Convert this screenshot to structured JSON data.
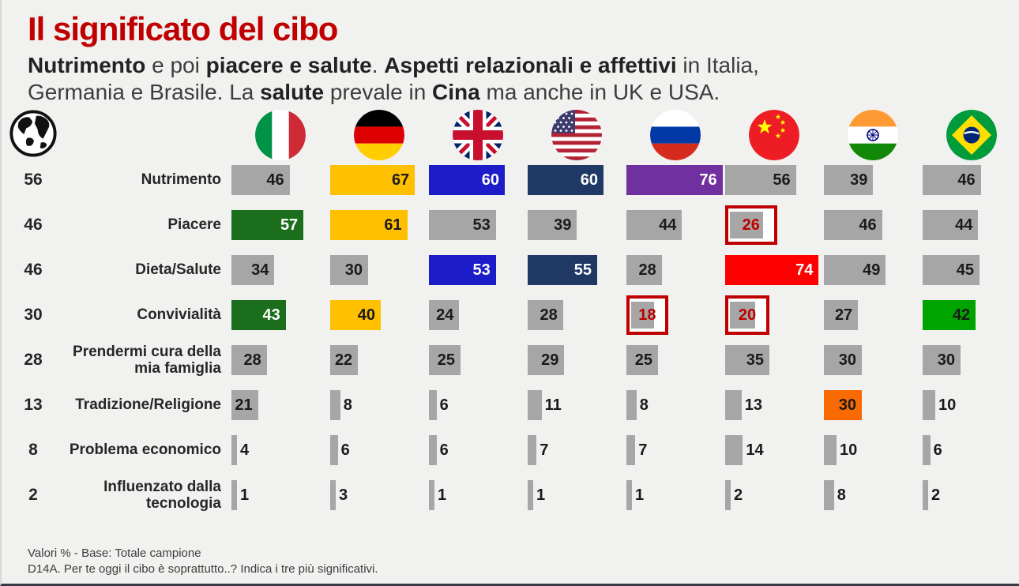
{
  "page": {
    "title": "Il significato del cibo",
    "subtitle_segments": [
      {
        "text": "Nutrimento",
        "bold": true
      },
      {
        "text": " e poi ",
        "bold": false
      },
      {
        "text": "piacere e salute",
        "bold": true
      },
      {
        "text": ".  ",
        "bold": false
      },
      {
        "text": "Aspetti relazionali e affettivi",
        "bold": true
      },
      {
        "text": " in Italia,",
        "bold": false
      },
      {
        "br": true
      },
      {
        "text": "Germania e Brasile. La ",
        "bold": false
      },
      {
        "text": "salute",
        "bold": true
      },
      {
        "text": " prevale in ",
        "bold": false
      },
      {
        "text": "Cina",
        "bold": true
      },
      {
        "text": " ma anche in UK e USA.",
        "bold": false
      }
    ],
    "footer_line1": "Valori % - Base: Totale campione",
    "footer_line2": "D14A. Per te oggi il cibo è soprattutto..? Indica i tre più significativi."
  },
  "palette": {
    "title_red": "#C00000",
    "highlight_border": "#C00000",
    "bar_colors": {
      "gray": {
        "bg": "#A6A6A6",
        "text": "#1A1A1A"
      },
      "yellow": {
        "bg": "#FFC000",
        "text": "#1A1A1A"
      },
      "blue": {
        "bg": "#1C1CC9",
        "text": "#FFFFFF"
      },
      "navy": {
        "bg": "#1F3864",
        "text": "#FFFFFF"
      },
      "purple": {
        "bg": "#7030A0",
        "text": "#FFFFFF"
      },
      "red": {
        "bg": "#FE0000",
        "text": "#FFFFFF"
      },
      "darkgreen": {
        "bg": "#1B6E1B",
        "text": "#FFFFFF"
      },
      "brightgreen": {
        "bg": "#00A400",
        "text": "#1A1A1A"
      },
      "orange": {
        "bg": "#F96A02",
        "text": "#1A1A1A"
      }
    }
  },
  "chart_data": {
    "type": "bar",
    "orientation": "horizontal",
    "value_unit": "%",
    "world_column_icon": "globe-icon",
    "countries": [
      "Italia",
      "Germania",
      "UK",
      "USA",
      "Russia",
      "Cina",
      "India",
      "Brasile"
    ],
    "categories": [
      "Nutrimento",
      "Piacere",
      "Dieta/Salute",
      "Convivialità",
      "Prendermi cura della mia famiglia",
      "Tradizione/Religione",
      "Problema economico",
      "Influenzato dalla tecnologia"
    ],
    "rows": [
      {
        "label": "Nutrimento",
        "world": 56,
        "values": [
          {
            "country": "Italia",
            "value": 46,
            "color": "gray"
          },
          {
            "country": "Germania",
            "value": 67,
            "color": "yellow"
          },
          {
            "country": "UK",
            "value": 60,
            "color": "blue"
          },
          {
            "country": "USA",
            "value": 60,
            "color": "navy"
          },
          {
            "country": "Russia",
            "value": 76,
            "color": "purple"
          },
          {
            "country": "Cina",
            "value": 56,
            "color": "gray"
          },
          {
            "country": "India",
            "value": 39,
            "color": "gray"
          },
          {
            "country": "Brasile",
            "value": 46,
            "color": "gray"
          }
        ]
      },
      {
        "label": "Piacere",
        "world": 46,
        "values": [
          {
            "country": "Italia",
            "value": 57,
            "color": "darkgreen"
          },
          {
            "country": "Germania",
            "value": 61,
            "color": "yellow"
          },
          {
            "country": "UK",
            "value": 53,
            "color": "gray"
          },
          {
            "country": "USA",
            "value": 39,
            "color": "gray"
          },
          {
            "country": "Russia",
            "value": 44,
            "color": "gray"
          },
          {
            "country": "Cina",
            "value": 26,
            "color": "gray",
            "highlight": true
          },
          {
            "country": "India",
            "value": 46,
            "color": "gray"
          },
          {
            "country": "Brasile",
            "value": 44,
            "color": "gray"
          }
        ]
      },
      {
        "label": "Dieta/Salute",
        "world": 46,
        "values": [
          {
            "country": "Italia",
            "value": 34,
            "color": "gray"
          },
          {
            "country": "Germania",
            "value": 30,
            "color": "gray"
          },
          {
            "country": "UK",
            "value": 53,
            "color": "blue"
          },
          {
            "country": "USA",
            "value": 55,
            "color": "navy"
          },
          {
            "country": "Russia",
            "value": 28,
            "color": "gray"
          },
          {
            "country": "Cina",
            "value": 74,
            "color": "red"
          },
          {
            "country": "India",
            "value": 49,
            "color": "gray"
          },
          {
            "country": "Brasile",
            "value": 45,
            "color": "gray"
          }
        ]
      },
      {
        "label": "Convivialità",
        "world": 30,
        "values": [
          {
            "country": "Italia",
            "value": 43,
            "color": "darkgreen"
          },
          {
            "country": "Germania",
            "value": 40,
            "color": "yellow"
          },
          {
            "country": "UK",
            "value": 24,
            "color": "gray"
          },
          {
            "country": "USA",
            "value": 28,
            "color": "gray"
          },
          {
            "country": "Russia",
            "value": 18,
            "color": "gray",
            "highlight": true
          },
          {
            "country": "Cina",
            "value": 20,
            "color": "gray",
            "highlight": true
          },
          {
            "country": "India",
            "value": 27,
            "color": "gray"
          },
          {
            "country": "Brasile",
            "value": 42,
            "color": "brightgreen"
          }
        ]
      },
      {
        "label": "Prendermi cura della mia famiglia",
        "world": 28,
        "values": [
          {
            "country": "Italia",
            "value": 28,
            "color": "gray"
          },
          {
            "country": "Germania",
            "value": 22,
            "color": "gray"
          },
          {
            "country": "UK",
            "value": 25,
            "color": "gray"
          },
          {
            "country": "USA",
            "value": 29,
            "color": "gray"
          },
          {
            "country": "Russia",
            "value": 25,
            "color": "gray"
          },
          {
            "country": "Cina",
            "value": 35,
            "color": "gray"
          },
          {
            "country": "India",
            "value": 30,
            "color": "gray"
          },
          {
            "country": "Brasile",
            "value": 30,
            "color": "gray"
          }
        ]
      },
      {
        "label": "Tradizione/Religione",
        "world": 13,
        "values": [
          {
            "country": "Italia",
            "value": 21,
            "color": "gray"
          },
          {
            "country": "Germania",
            "value": 8,
            "color": "gray"
          },
          {
            "country": "UK",
            "value": 6,
            "color": "gray"
          },
          {
            "country": "USA",
            "value": 11,
            "color": "gray"
          },
          {
            "country": "Russia",
            "value": 8,
            "color": "gray"
          },
          {
            "country": "Cina",
            "value": 13,
            "color": "gray"
          },
          {
            "country": "India",
            "value": 30,
            "color": "orange"
          },
          {
            "country": "Brasile",
            "value": 10,
            "color": "gray"
          }
        ]
      },
      {
        "label": "Problema economico",
        "world": 8,
        "values": [
          {
            "country": "Italia",
            "value": 4,
            "color": "gray"
          },
          {
            "country": "Germania",
            "value": 6,
            "color": "gray"
          },
          {
            "country": "UK",
            "value": 6,
            "color": "gray"
          },
          {
            "country": "USA",
            "value": 7,
            "color": "gray"
          },
          {
            "country": "Russia",
            "value": 7,
            "color": "gray"
          },
          {
            "country": "Cina",
            "value": 14,
            "color": "gray"
          },
          {
            "country": "India",
            "value": 10,
            "color": "gray"
          },
          {
            "country": "Brasile",
            "value": 6,
            "color": "gray"
          }
        ]
      },
      {
        "label": "Influenzato dalla tecnologia",
        "world": 2,
        "values": [
          {
            "country": "Italia",
            "value": 1,
            "color": "gray"
          },
          {
            "country": "Germania",
            "value": 3,
            "color": "gray"
          },
          {
            "country": "UK",
            "value": 1,
            "color": "gray"
          },
          {
            "country": "USA",
            "value": 1,
            "color": "gray"
          },
          {
            "country": "Russia",
            "value": 1,
            "color": "gray"
          },
          {
            "country": "Cina",
            "value": 2,
            "color": "gray"
          },
          {
            "country": "India",
            "value": 8,
            "color": "gray"
          },
          {
            "country": "Brasile",
            "value": 2,
            "color": "gray"
          }
        ]
      }
    ]
  }
}
